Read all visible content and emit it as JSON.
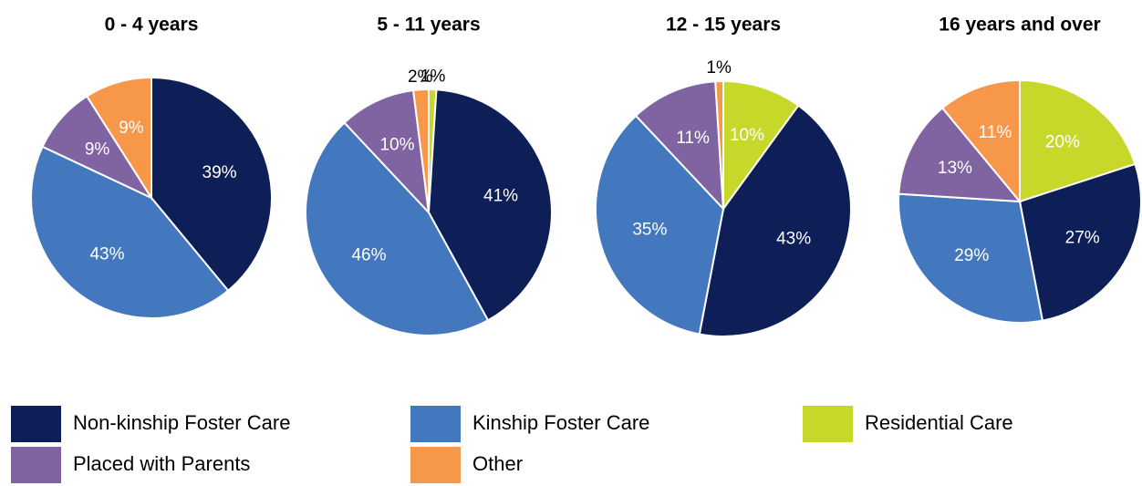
{
  "chart_data": [
    {
      "type": "pie",
      "title": "0 - 4 years",
      "categories": [
        "Non-kinship Foster Care",
        "Kinship Foster Care",
        "Placed with Parents",
        "Other"
      ],
      "values": [
        39,
        43,
        9,
        9
      ],
      "value_labels": [
        "39%",
        "43%",
        "9%",
        "9%"
      ],
      "colors": [
        "#0e1f57",
        "#4478be",
        "#8064a2",
        "#f7974a"
      ]
    },
    {
      "type": "pie",
      "title": "5 - 11 years",
      "categories": [
        "Residential Care",
        "Non-kinship Foster Care",
        "Kinship Foster Care",
        "Placed with Parents",
        "Other"
      ],
      "values": [
        1,
        41,
        46,
        10,
        2
      ],
      "value_labels": [
        "1%",
        "41%",
        "46%",
        "10%",
        "2%"
      ],
      "colors": [
        "#c8d82a",
        "#0e1f57",
        "#4478be",
        "#8064a2",
        "#f7974a"
      ]
    },
    {
      "type": "pie",
      "title": "12 - 15 years",
      "categories": [
        "Residential Care",
        "Non-kinship Foster Care",
        "Kinship Foster Care",
        "Placed with Parents",
        "Other"
      ],
      "values": [
        10,
        43,
        35,
        11,
        1
      ],
      "value_labels": [
        "10%",
        "43%",
        "35%",
        "11%",
        "1%"
      ],
      "colors": [
        "#c8d82a",
        "#0e1f57",
        "#4478be",
        "#8064a2",
        "#f7974a"
      ]
    },
    {
      "type": "pie",
      "title": "16 years and over",
      "categories": [
        "Residential Care",
        "Non-kinship Foster Care",
        "Kinship Foster Care",
        "Placed with Parents",
        "Other"
      ],
      "values": [
        20,
        27,
        29,
        13,
        11
      ],
      "value_labels": [
        "20%",
        "27%",
        "29%",
        "13%",
        "11%"
      ],
      "colors": [
        "#c8d82a",
        "#0e1f57",
        "#4478be",
        "#8064a2",
        "#f7974a"
      ]
    }
  ]
}
